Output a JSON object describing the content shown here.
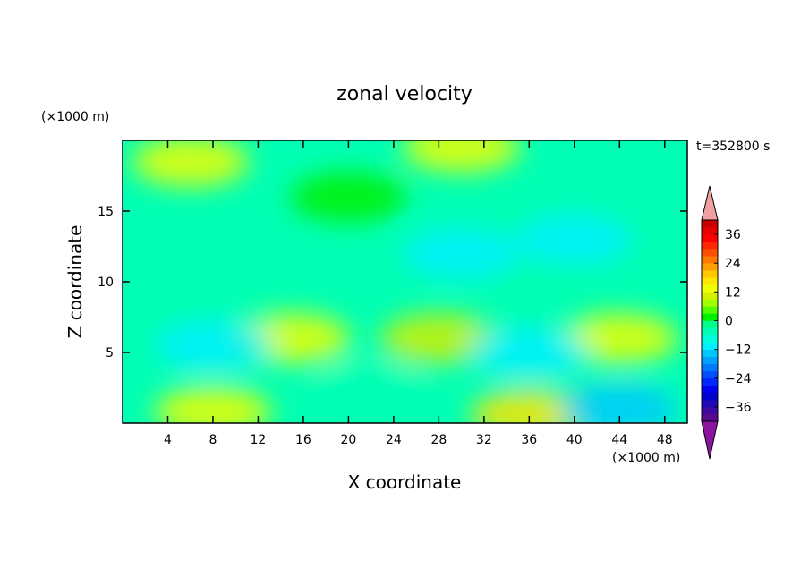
{
  "chart_data": {
    "type": "heatmap",
    "title": "zonal velocity",
    "xlabel": "X coordinate",
    "ylabel": "Z coordinate",
    "x_unit": "(×1000 m)",
    "y_unit": "(×1000 m)",
    "time_label": "t=352800 s",
    "xlim": [
      0,
      50
    ],
    "ylim": [
      0,
      20
    ],
    "x_ticks": [
      4,
      8,
      12,
      16,
      20,
      24,
      28,
      32,
      36,
      40,
      44,
      48
    ],
    "y_ticks": [
      5,
      10,
      15
    ],
    "grid": false,
    "colorbar": {
      "levels": [
        -42,
        -39,
        -36,
        -33,
        -30,
        -27,
        -24,
        -21,
        -18,
        -15,
        -12,
        -9,
        -6,
        -3,
        0,
        3,
        6,
        9,
        12,
        15,
        18,
        21,
        24,
        27,
        30,
        33,
        36,
        39,
        42
      ],
      "tick_labels": [
        "36",
        "24",
        "12",
        "0",
        "−12",
        "−24",
        "−36"
      ],
      "tick_values": [
        36,
        24,
        12,
        0,
        -12,
        -24,
        -36
      ],
      "colors": [
        "#5a0a8c",
        "#3c0aa0",
        "#1e0ab4",
        "#0000c8",
        "#0000f0",
        "#0028ff",
        "#0050ff",
        "#0078ff",
        "#00a0ff",
        "#00c8ff",
        "#00f0ff",
        "#00ffdc",
        "#00ffb4",
        "#00ff8c",
        "#00f000",
        "#50ff00",
        "#a0ff00",
        "#d2f000",
        "#f0ff00",
        "#ffe600",
        "#ffc800",
        "#ffa000",
        "#ff7800",
        "#ff5000",
        "#ff2800",
        "#ff0000",
        "#e60000",
        "#c80000"
      ],
      "over_color": "#f0a0a0",
      "under_color": "#8c14a0"
    },
    "field_features": [
      {
        "x": 30,
        "z": 19.5,
        "u": 14
      },
      {
        "x": 6,
        "z": 18.5,
        "u": 12
      },
      {
        "x": 20,
        "z": 16,
        "u": 0
      },
      {
        "x": 30,
        "z": 12,
        "u": -10
      },
      {
        "x": 40,
        "z": 13,
        "u": -12
      },
      {
        "x": 15,
        "z": 6,
        "u": 12
      },
      {
        "x": 28,
        "z": 6,
        "u": 10
      },
      {
        "x": 44,
        "z": 6,
        "u": 12
      },
      {
        "x": 8,
        "z": 5.5,
        "u": -10
      },
      {
        "x": 36,
        "z": 5,
        "u": -12
      },
      {
        "x": 36,
        "z": 0.6,
        "u": 16
      },
      {
        "x": 8,
        "z": 0.8,
        "u": 12
      },
      {
        "x": 44,
        "z": 1,
        "u": -14
      },
      {
        "x": 22,
        "z": 2.5,
        "u": -4
      }
    ]
  }
}
